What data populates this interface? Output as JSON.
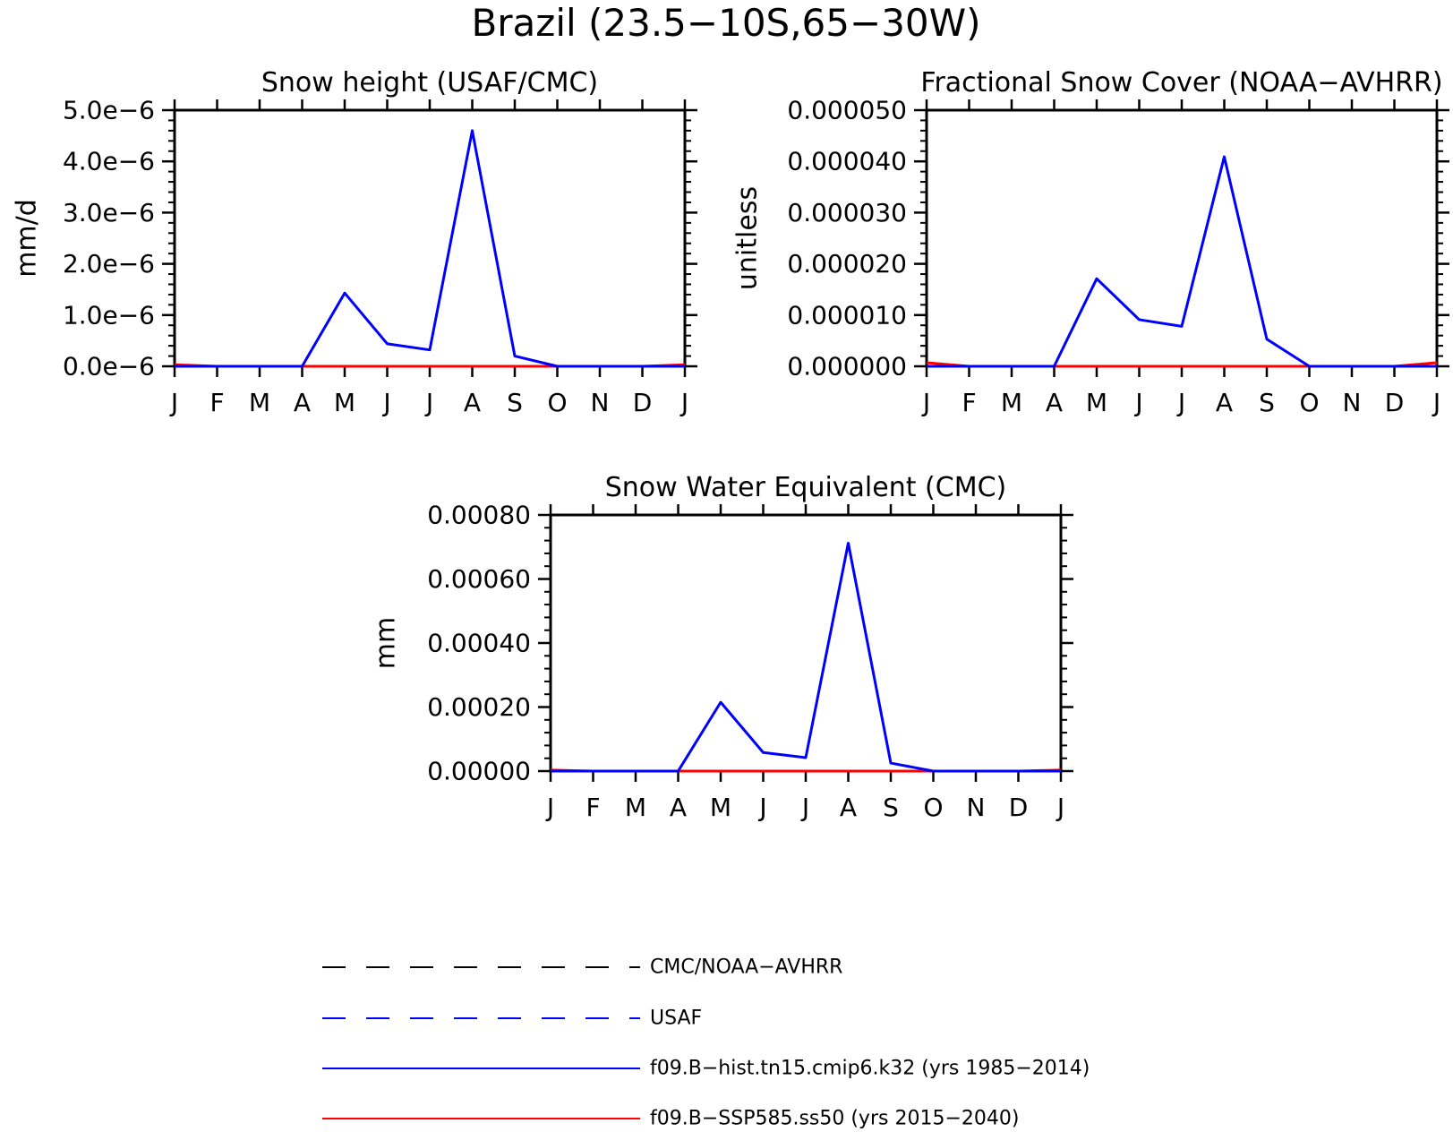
{
  "figure": {
    "title": "Brazil (23.5−10S,65−30W)"
  },
  "colors": {
    "axis": "#000000",
    "hist": "#0000ff",
    "ssp": "#ff0000",
    "obs_black": "#000000",
    "obs_blue": "#0000ff"
  },
  "chart_data": [
    {
      "type": "line",
      "title": "Snow height (USAF/CMC)",
      "xlabel": "",
      "ylabel": "mm/d",
      "categories": [
        "J",
        "F",
        "M",
        "A",
        "M",
        "J",
        "J",
        "A",
        "S",
        "O",
        "N",
        "D",
        "J"
      ],
      "ylim": [
        0,
        5e-06
      ],
      "yticks": [
        0,
        1e-06,
        2e-06,
        3e-06,
        4e-06,
        5e-06
      ],
      "ytick_labels": [
        "0.0e−6",
        "1.0e−6",
        "2.0e−6",
        "3.0e−6",
        "4.0e−6",
        "5.0e−6"
      ],
      "grid": false,
      "series": [
        {
          "name": "f09.B−hist.tn15.cmip6.k32 (yrs 1985−2014)",
          "color": "#0000ff",
          "values": [
            0,
            0,
            0,
            0,
            1.43e-06,
            4.4e-07,
            3.2e-07,
            4.6e-06,
            2e-07,
            0,
            0,
            0,
            0
          ]
        },
        {
          "name": "f09.B−SSP585.ss50 (yrs 2015−2040)",
          "color": "#ff0000",
          "values": [
            3e-08,
            0,
            0,
            0,
            0,
            0,
            0,
            0,
            0,
            0,
            0,
            0,
            3e-08
          ]
        }
      ]
    },
    {
      "type": "line",
      "title": "Fractional Snow Cover (NOAA−AVHRR)",
      "xlabel": "",
      "ylabel": "unitless",
      "categories": [
        "J",
        "F",
        "M",
        "A",
        "M",
        "J",
        "J",
        "A",
        "S",
        "O",
        "N",
        "D",
        "J"
      ],
      "ylim": [
        0,
        5e-05
      ],
      "yticks": [
        0,
        1e-05,
        2e-05,
        3e-05,
        4e-05,
        5e-05
      ],
      "ytick_labels": [
        "0.000000",
        "0.000010",
        "0.000020",
        "0.000030",
        "0.000040",
        "0.000050"
      ],
      "grid": false,
      "series": [
        {
          "name": "f09.B−hist.tn15.cmip6.k32 (yrs 1985−2014)",
          "color": "#0000ff",
          "values": [
            0,
            0,
            0,
            0,
            1.71e-05,
            9.1e-06,
            7.8e-06,
            4.09e-05,
            5.3e-06,
            0,
            0,
            0,
            0
          ]
        },
        {
          "name": "f09.B−SSP585.ss50 (yrs 2015−2040)",
          "color": "#ff0000",
          "values": [
            7e-07,
            0,
            0,
            0,
            0,
            0,
            0,
            0,
            0,
            0,
            0,
            0,
            7e-07
          ]
        }
      ]
    },
    {
      "type": "line",
      "title": "Snow Water Equivalent (CMC)",
      "xlabel": "",
      "ylabel": "mm",
      "categories": [
        "J",
        "F",
        "M",
        "A",
        "M",
        "J",
        "J",
        "A",
        "S",
        "O",
        "N",
        "D",
        "J"
      ],
      "ylim": [
        0,
        0.0008
      ],
      "yticks": [
        0,
        0.0002,
        0.0004,
        0.0006,
        0.0008
      ],
      "ytick_labels": [
        "0.00000",
        "0.00020",
        "0.00040",
        "0.00060",
        "0.00080"
      ],
      "grid": false,
      "series": [
        {
          "name": "f09.B−hist.tn15.cmip6.k32 (yrs 1985−2014)",
          "color": "#0000ff",
          "values": [
            0,
            0,
            0,
            0,
            0.000215,
            5.8e-05,
            4.2e-05,
            0.000712,
            2.5e-05,
            0,
            0,
            0,
            0
          ]
        },
        {
          "name": "f09.B−SSP585.ss50 (yrs 2015−2040)",
          "color": "#ff0000",
          "values": [
            3e-06,
            0,
            0,
            0,
            0,
            0,
            0,
            0,
            0,
            0,
            0,
            0,
            3e-06
          ]
        }
      ]
    }
  ],
  "legend": {
    "placement": "bottom",
    "items": [
      {
        "label": "CMC/NOAA−AVHRR",
        "color": "#000000",
        "style": "dashed"
      },
      {
        "label": "USAF",
        "color": "#0000ff",
        "style": "dashed"
      },
      {
        "label": "f09.B−hist.tn15.cmip6.k32 (yrs 1985−2014)",
        "color": "#0000ff",
        "style": "solid"
      },
      {
        "label": "f09.B−SSP585.ss50 (yrs 2015−2040)",
        "color": "#ff0000",
        "style": "solid"
      }
    ]
  }
}
